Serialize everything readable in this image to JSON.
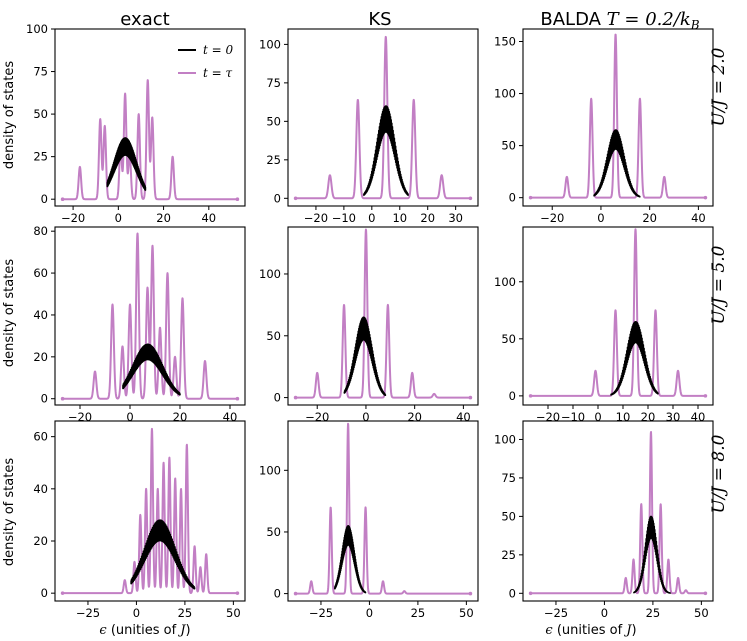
{
  "figure": {
    "colors": {
      "t0": "#000000",
      "ttau": "#c27fc4"
    },
    "legend": {
      "t0_label": "t = 0",
      "ttau_label": "t = τ"
    },
    "col_titles": [
      "exact",
      "KS",
      "BALDA T = 0.2/k_B"
    ],
    "col_title_text": {
      "exact": "exact",
      "ks": "KS",
      "balda_prefix": "BALDA ",
      "balda_math": "T = 0.2/k",
      "balda_sub": "B"
    },
    "row_labels": [
      "U/J = 2.0",
      "U/J = 5.0",
      "U/J = 8.0"
    ],
    "ylabel": "density of states",
    "xlabel_prefix": "ϵ",
    "xlabel_text": " (unities of ",
    "xlabel_math": "J",
    "xlabel_close": ")"
  },
  "chart_data": [
    {
      "type": "line",
      "row": 0,
      "col": 0,
      "title": "exact",
      "xlim": [
        -28,
        56
      ],
      "ylim": [
        -4,
        100
      ],
      "xticks": [
        -20,
        0,
        20,
        40
      ],
      "yticks": [
        0,
        25,
        50,
        75,
        100
      ],
      "ylabel": "density of states",
      "peaks_t_tau": [
        [
          -17,
          19
        ],
        [
          -8,
          47
        ],
        [
          -6,
          43
        ],
        [
          1,
          31
        ],
        [
          3,
          62
        ],
        [
          5,
          27
        ],
        [
          9,
          50
        ],
        [
          13,
          70
        ],
        [
          15,
          48
        ],
        [
          24,
          25
        ]
      ],
      "hist_t0": {
        "center": 3,
        "width": 5,
        "peak": 36,
        "lo": -5,
        "hi": 12
      },
      "legend": true,
      "row_label": null
    },
    {
      "type": "line",
      "row": 0,
      "col": 1,
      "title": "KS",
      "xlim": [
        -30,
        38
      ],
      "ylim": [
        -5,
        110
      ],
      "xticks": [
        -20,
        -10,
        0,
        10,
        20,
        30
      ],
      "yticks": [
        0,
        25,
        50,
        75,
        100
      ],
      "peaks_t_tau": [
        [
          -15,
          15
        ],
        [
          -5,
          64
        ],
        [
          5,
          105
        ],
        [
          15,
          64
        ],
        [
          25,
          15
        ]
      ],
      "hist_t0": {
        "center": 5,
        "width": 3.2,
        "peak": 60,
        "lo": -3,
        "hi": 13
      },
      "legend": false,
      "row_label": null
    },
    {
      "type": "line",
      "row": 0,
      "col": 2,
      "title": "BALDA T = 0.2/k_B",
      "xlim": [
        -32,
        46
      ],
      "ylim": [
        -8,
        162
      ],
      "xticks": [
        -20,
        0,
        20,
        40
      ],
      "yticks": [
        0,
        50,
        100,
        150
      ],
      "peaks_t_tau": [
        [
          -14,
          20
        ],
        [
          -4,
          95
        ],
        [
          6,
          157
        ],
        [
          16,
          95
        ],
        [
          26,
          20
        ]
      ],
      "hist_t0": {
        "center": 6,
        "width": 3.5,
        "peak": 65,
        "lo": -3,
        "hi": 16
      },
      "legend": false,
      "row_label": "U/J = 2.0"
    },
    {
      "type": "line",
      "row": 1,
      "col": 0,
      "title": "exact",
      "xlim": [
        -30,
        46
      ],
      "ylim": [
        -3,
        82
      ],
      "xticks": [
        -20,
        0,
        20,
        40
      ],
      "yticks": [
        0,
        20,
        40,
        60,
        80
      ],
      "ylabel": "density of states",
      "peaks_t_tau": [
        [
          -14,
          13
        ],
        [
          -7,
          45
        ],
        [
          -3,
          25
        ],
        [
          0,
          45
        ],
        [
          3,
          79
        ],
        [
          7,
          53
        ],
        [
          9,
          73
        ],
        [
          12,
          34
        ],
        [
          15,
          60
        ],
        [
          18,
          20
        ],
        [
          21,
          48
        ],
        [
          30,
          18
        ]
      ],
      "hist_t0": {
        "center": 7,
        "width": 6,
        "peak": 26,
        "lo": -3,
        "hi": 20
      },
      "legend": false,
      "row_label": null
    },
    {
      "type": "line",
      "row": 1,
      "col": 1,
      "title": "KS",
      "xlim": [
        -32,
        46
      ],
      "ylim": [
        -6,
        138
      ],
      "xticks": [
        -20,
        0,
        20,
        40
      ],
      "yticks": [
        0,
        50,
        100
      ],
      "peaks_t_tau": [
        [
          -20,
          20
        ],
        [
          -9,
          75
        ],
        [
          0,
          136
        ],
        [
          9,
          75
        ],
        [
          19,
          20
        ],
        [
          28,
          3
        ]
      ],
      "hist_t0": {
        "center": -1,
        "width": 3.5,
        "peak": 65,
        "lo": -9,
        "hi": 8
      },
      "legend": false,
      "row_label": null
    },
    {
      "type": "line",
      "row": 1,
      "col": 2,
      "title": "BALDA T = 0.2/k_B",
      "xlim": [
        -30,
        46
      ],
      "ylim": [
        -8,
        148
      ],
      "xticks": [
        -20,
        -10,
        0,
        10,
        20,
        30,
        40
      ],
      "yticks": [
        0,
        50,
        100
      ],
      "peaks_t_tau": [
        [
          -1,
          22
        ],
        [
          7,
          75
        ],
        [
          15,
          146
        ],
        [
          23,
          75
        ],
        [
          32,
          22
        ]
      ],
      "hist_t0": {
        "center": 15,
        "width": 3.5,
        "peak": 65,
        "lo": 5,
        "hi": 24
      },
      "legend": false,
      "row_label": "U/J = 5.0"
    },
    {
      "type": "line",
      "row": 2,
      "col": 0,
      "title": "exact",
      "xlim": [
        -42,
        56
      ],
      "ylim": [
        -3,
        66
      ],
      "xticks": [
        -25,
        0,
        25,
        50
      ],
      "yticks": [
        0,
        20,
        40,
        60
      ],
      "ylabel": "density of states",
      "peaks_t_tau": [
        [
          -6,
          5
        ],
        [
          -1,
          12
        ],
        [
          2,
          30
        ],
        [
          5,
          40
        ],
        [
          8,
          63
        ],
        [
          11,
          40
        ],
        [
          14,
          50
        ],
        [
          17,
          52
        ],
        [
          20,
          44
        ],
        [
          23,
          40
        ],
        [
          26,
          57
        ],
        [
          30,
          18
        ],
        [
          33,
          10
        ],
        [
          36,
          15
        ]
      ],
      "hist_t0": {
        "center": 12,
        "width": 8,
        "peak": 28,
        "lo": -3,
        "hi": 30
      },
      "legend": false,
      "row_label": null
    },
    {
      "type": "line",
      "row": 2,
      "col": 1,
      "title": "KS",
      "xlim": [
        -42,
        56
      ],
      "ylim": [
        -6,
        140
      ],
      "xticks": [
        -25,
        0,
        25,
        50
      ],
      "yticks": [
        0,
        50,
        100
      ],
      "peaks_t_tau": [
        [
          -30,
          10
        ],
        [
          -20,
          70
        ],
        [
          -11,
          138
        ],
        [
          -2,
          70
        ],
        [
          7,
          10
        ],
        [
          18,
          2
        ]
      ],
      "hist_t0": {
        "center": -11,
        "width": 3.2,
        "peak": 55,
        "lo": -18,
        "hi": -2
      },
      "legend": false,
      "row_label": null
    },
    {
      "type": "line",
      "row": 2,
      "col": 2,
      "title": "BALDA T = 0.2/k_B",
      "xlim": [
        -42,
        56
      ],
      "ylim": [
        -5,
        112
      ],
      "xticks": [
        -25,
        0,
        25,
        50
      ],
      "yticks": [
        0,
        25,
        50,
        75,
        100
      ],
      "peaks_t_tau": [
        [
          11,
          10
        ],
        [
          15,
          22
        ],
        [
          19,
          58
        ],
        [
          24,
          105
        ],
        [
          29,
          58
        ],
        [
          33,
          22
        ],
        [
          38,
          10
        ],
        [
          42,
          2
        ]
      ],
      "hist_t0": {
        "center": 24,
        "width": 3,
        "peak": 50,
        "lo": 15,
        "hi": 34
      },
      "legend": false,
      "row_label": "U/J = 8.0"
    }
  ]
}
